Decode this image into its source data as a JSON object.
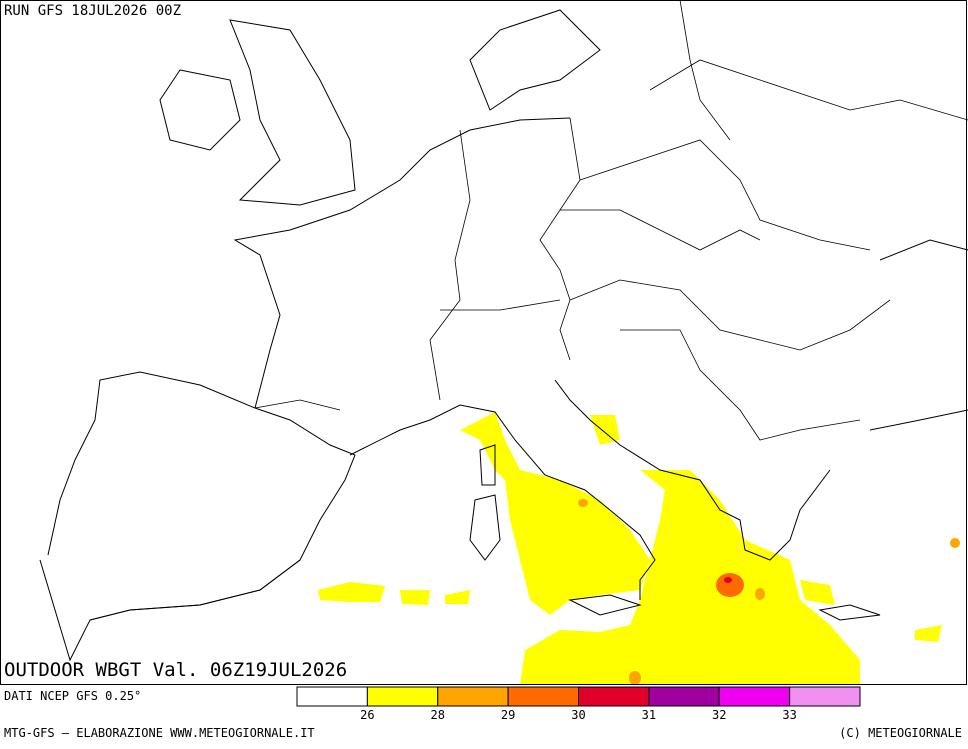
{
  "header": {
    "run": "RUN GFS 18JUL2026 00Z"
  },
  "map": {
    "title": "OUTDOOR WBGT Val. 06Z19JUL2026"
  },
  "legend": {
    "source": "DATI NCEP GFS 0.25°",
    "colors": [
      "#ffffff",
      "#ffff00",
      "#ffa500",
      "#ff6a00",
      "#e0002a",
      "#a000a0",
      "#f000f0",
      "#f090f0"
    ],
    "labels": [
      "26",
      "28",
      "29",
      "30",
      "31",
      "32",
      "33"
    ]
  },
  "footer": {
    "left": "MTG-GFS — ELABORAZIONE WWW.METEOGIORNALE.IT",
    "right": "(C) METEOGIORNALE"
  }
}
